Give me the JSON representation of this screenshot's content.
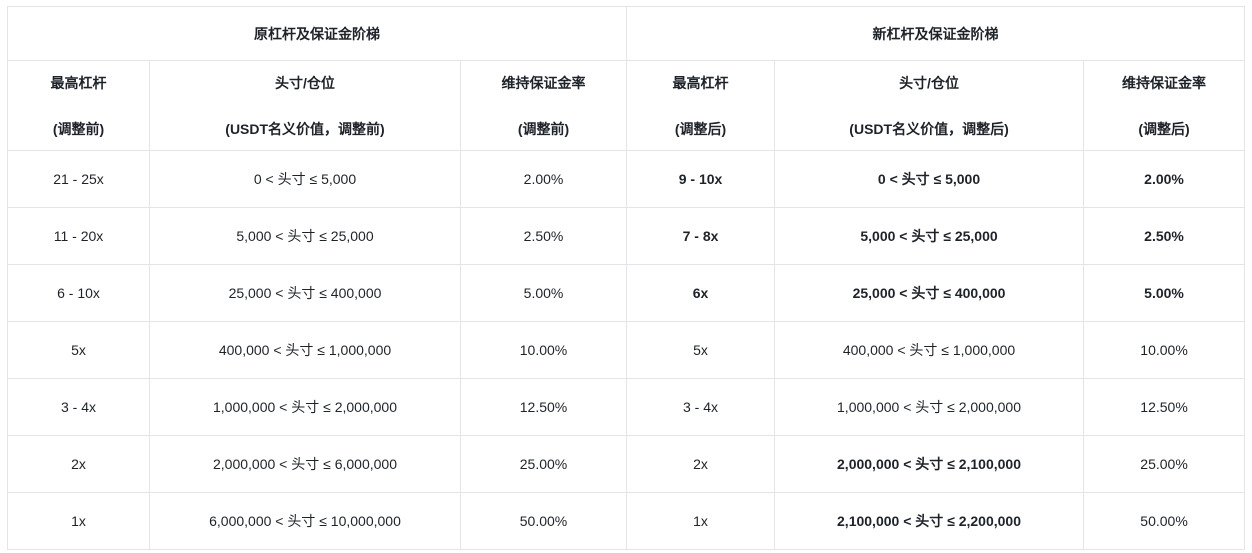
{
  "table": {
    "group_headers": [
      {
        "label": "原杠杆及保证金阶梯"
      },
      {
        "label": "新杠杆及保证金阶梯"
      }
    ],
    "column_headers": [
      {
        "line1": "最高杠杆",
        "line2": "(调整前)"
      },
      {
        "line1": "头寸/仓位",
        "line2": "(USDT名义价值，调整前)"
      },
      {
        "line1": "维持保证金率",
        "line2": "(调整前)"
      },
      {
        "line1": "最高杠杆",
        "line2": "(调整后)"
      },
      {
        "line1": "头寸/仓位",
        "line2": "(USDT名义价值，调整后)"
      },
      {
        "line1": "维持保证金率",
        "line2": "(调整后)"
      }
    ],
    "rows": [
      {
        "cells": [
          {
            "text": "21 - 25x",
            "bold": false
          },
          {
            "text": "0 < 头寸 ≤ 5,000",
            "bold": false
          },
          {
            "text": "2.00%",
            "bold": false
          },
          {
            "text": "9 - 10x",
            "bold": true
          },
          {
            "text": "0 < 头寸 ≤ 5,000",
            "bold": true
          },
          {
            "text": "2.00%",
            "bold": true
          }
        ]
      },
      {
        "cells": [
          {
            "text": "11 - 20x",
            "bold": false
          },
          {
            "text": "5,000 < 头寸 ≤ 25,000",
            "bold": false
          },
          {
            "text": "2.50%",
            "bold": false
          },
          {
            "text": "7 - 8x",
            "bold": true
          },
          {
            "text": "5,000 < 头寸 ≤ 25,000",
            "bold": true
          },
          {
            "text": "2.50%",
            "bold": true
          }
        ]
      },
      {
        "cells": [
          {
            "text": "6 - 10x",
            "bold": false
          },
          {
            "text": "25,000 < 头寸 ≤ 400,000",
            "bold": false
          },
          {
            "text": "5.00%",
            "bold": false
          },
          {
            "text": "6x",
            "bold": true
          },
          {
            "text": "25,000 < 头寸 ≤ 400,000",
            "bold": true
          },
          {
            "text": "5.00%",
            "bold": true
          }
        ]
      },
      {
        "cells": [
          {
            "text": "5x",
            "bold": false
          },
          {
            "text": "400,000 < 头寸 ≤ 1,000,000",
            "bold": false
          },
          {
            "text": "10.00%",
            "bold": false
          },
          {
            "text": "5x",
            "bold": false
          },
          {
            "text": "400,000 < 头寸 ≤ 1,000,000",
            "bold": false
          },
          {
            "text": "10.00%",
            "bold": false
          }
        ]
      },
      {
        "cells": [
          {
            "text": "3 - 4x",
            "bold": false
          },
          {
            "text": "1,000,000 < 头寸 ≤ 2,000,000",
            "bold": false
          },
          {
            "text": "12.50%",
            "bold": false
          },
          {
            "text": "3 - 4x",
            "bold": false
          },
          {
            "text": "1,000,000 < 头寸 ≤ 2,000,000",
            "bold": false
          },
          {
            "text": "12.50%",
            "bold": false
          }
        ]
      },
      {
        "cells": [
          {
            "text": "2x",
            "bold": false
          },
          {
            "text": "2,000,000 < 头寸 ≤ 6,000,000",
            "bold": false
          },
          {
            "text": "25.00%",
            "bold": false
          },
          {
            "text": "2x",
            "bold": false
          },
          {
            "text": "2,000,000 < 头寸 ≤ 2,100,000",
            "bold": true
          },
          {
            "text": "25.00%",
            "bold": false
          }
        ]
      },
      {
        "cells": [
          {
            "text": "1x",
            "bold": false
          },
          {
            "text": "6,000,000 < 头寸 ≤ 10,000,000",
            "bold": false
          },
          {
            "text": "50.00%",
            "bold": false
          },
          {
            "text": "1x",
            "bold": false
          },
          {
            "text": "2,100,000 < 头寸 ≤ 2,200,000",
            "bold": true
          },
          {
            "text": "50.00%",
            "bold": false
          }
        ]
      }
    ],
    "colors": {
      "border": "#e3e5e8",
      "text": "#1e2329",
      "background": "#ffffff"
    }
  }
}
